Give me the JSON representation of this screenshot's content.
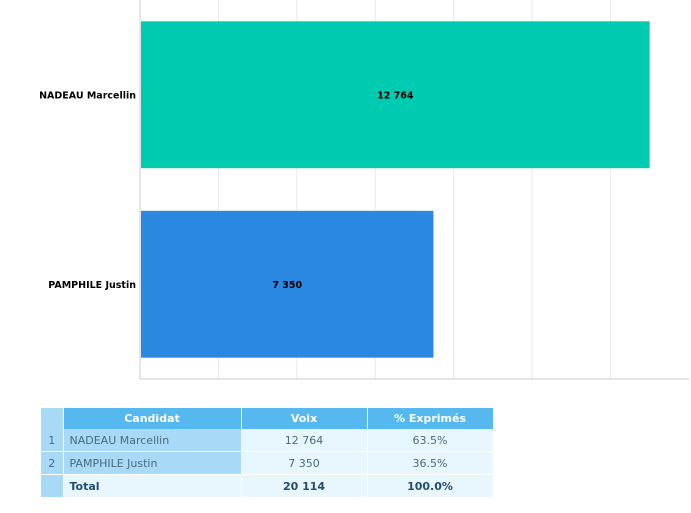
{
  "chart_data": {
    "type": "bar",
    "orientation": "horizontal",
    "categories": [
      "NADEAU Marcellin",
      "PAMPHILE Justin"
    ],
    "values": [
      12764,
      7350
    ],
    "value_labels": [
      "12 764",
      "7 350"
    ],
    "colors": [
      "#00cbb0",
      "#2a88e0"
    ],
    "xlim": [
      0,
      13750
    ],
    "grid": true,
    "legend": "none"
  },
  "table": {
    "headers": [
      "Candidat",
      "Voix",
      "% Exprimés"
    ],
    "rows": [
      {
        "rank": "1",
        "name": "NADEAU Marcellin",
        "votes": "12 764",
        "pct": "63.5%"
      },
      {
        "rank": "2",
        "name": "PAMPHILE Justin",
        "votes": "7 350",
        "pct": "36.5%"
      }
    ],
    "total": {
      "label": "Total",
      "votes": "20 114",
      "pct": "100.0%"
    }
  },
  "colors": {
    "header_bg": "#55b8ee",
    "row_bg": "#e8f6fd",
    "side_bg": "#a8daf7"
  }
}
